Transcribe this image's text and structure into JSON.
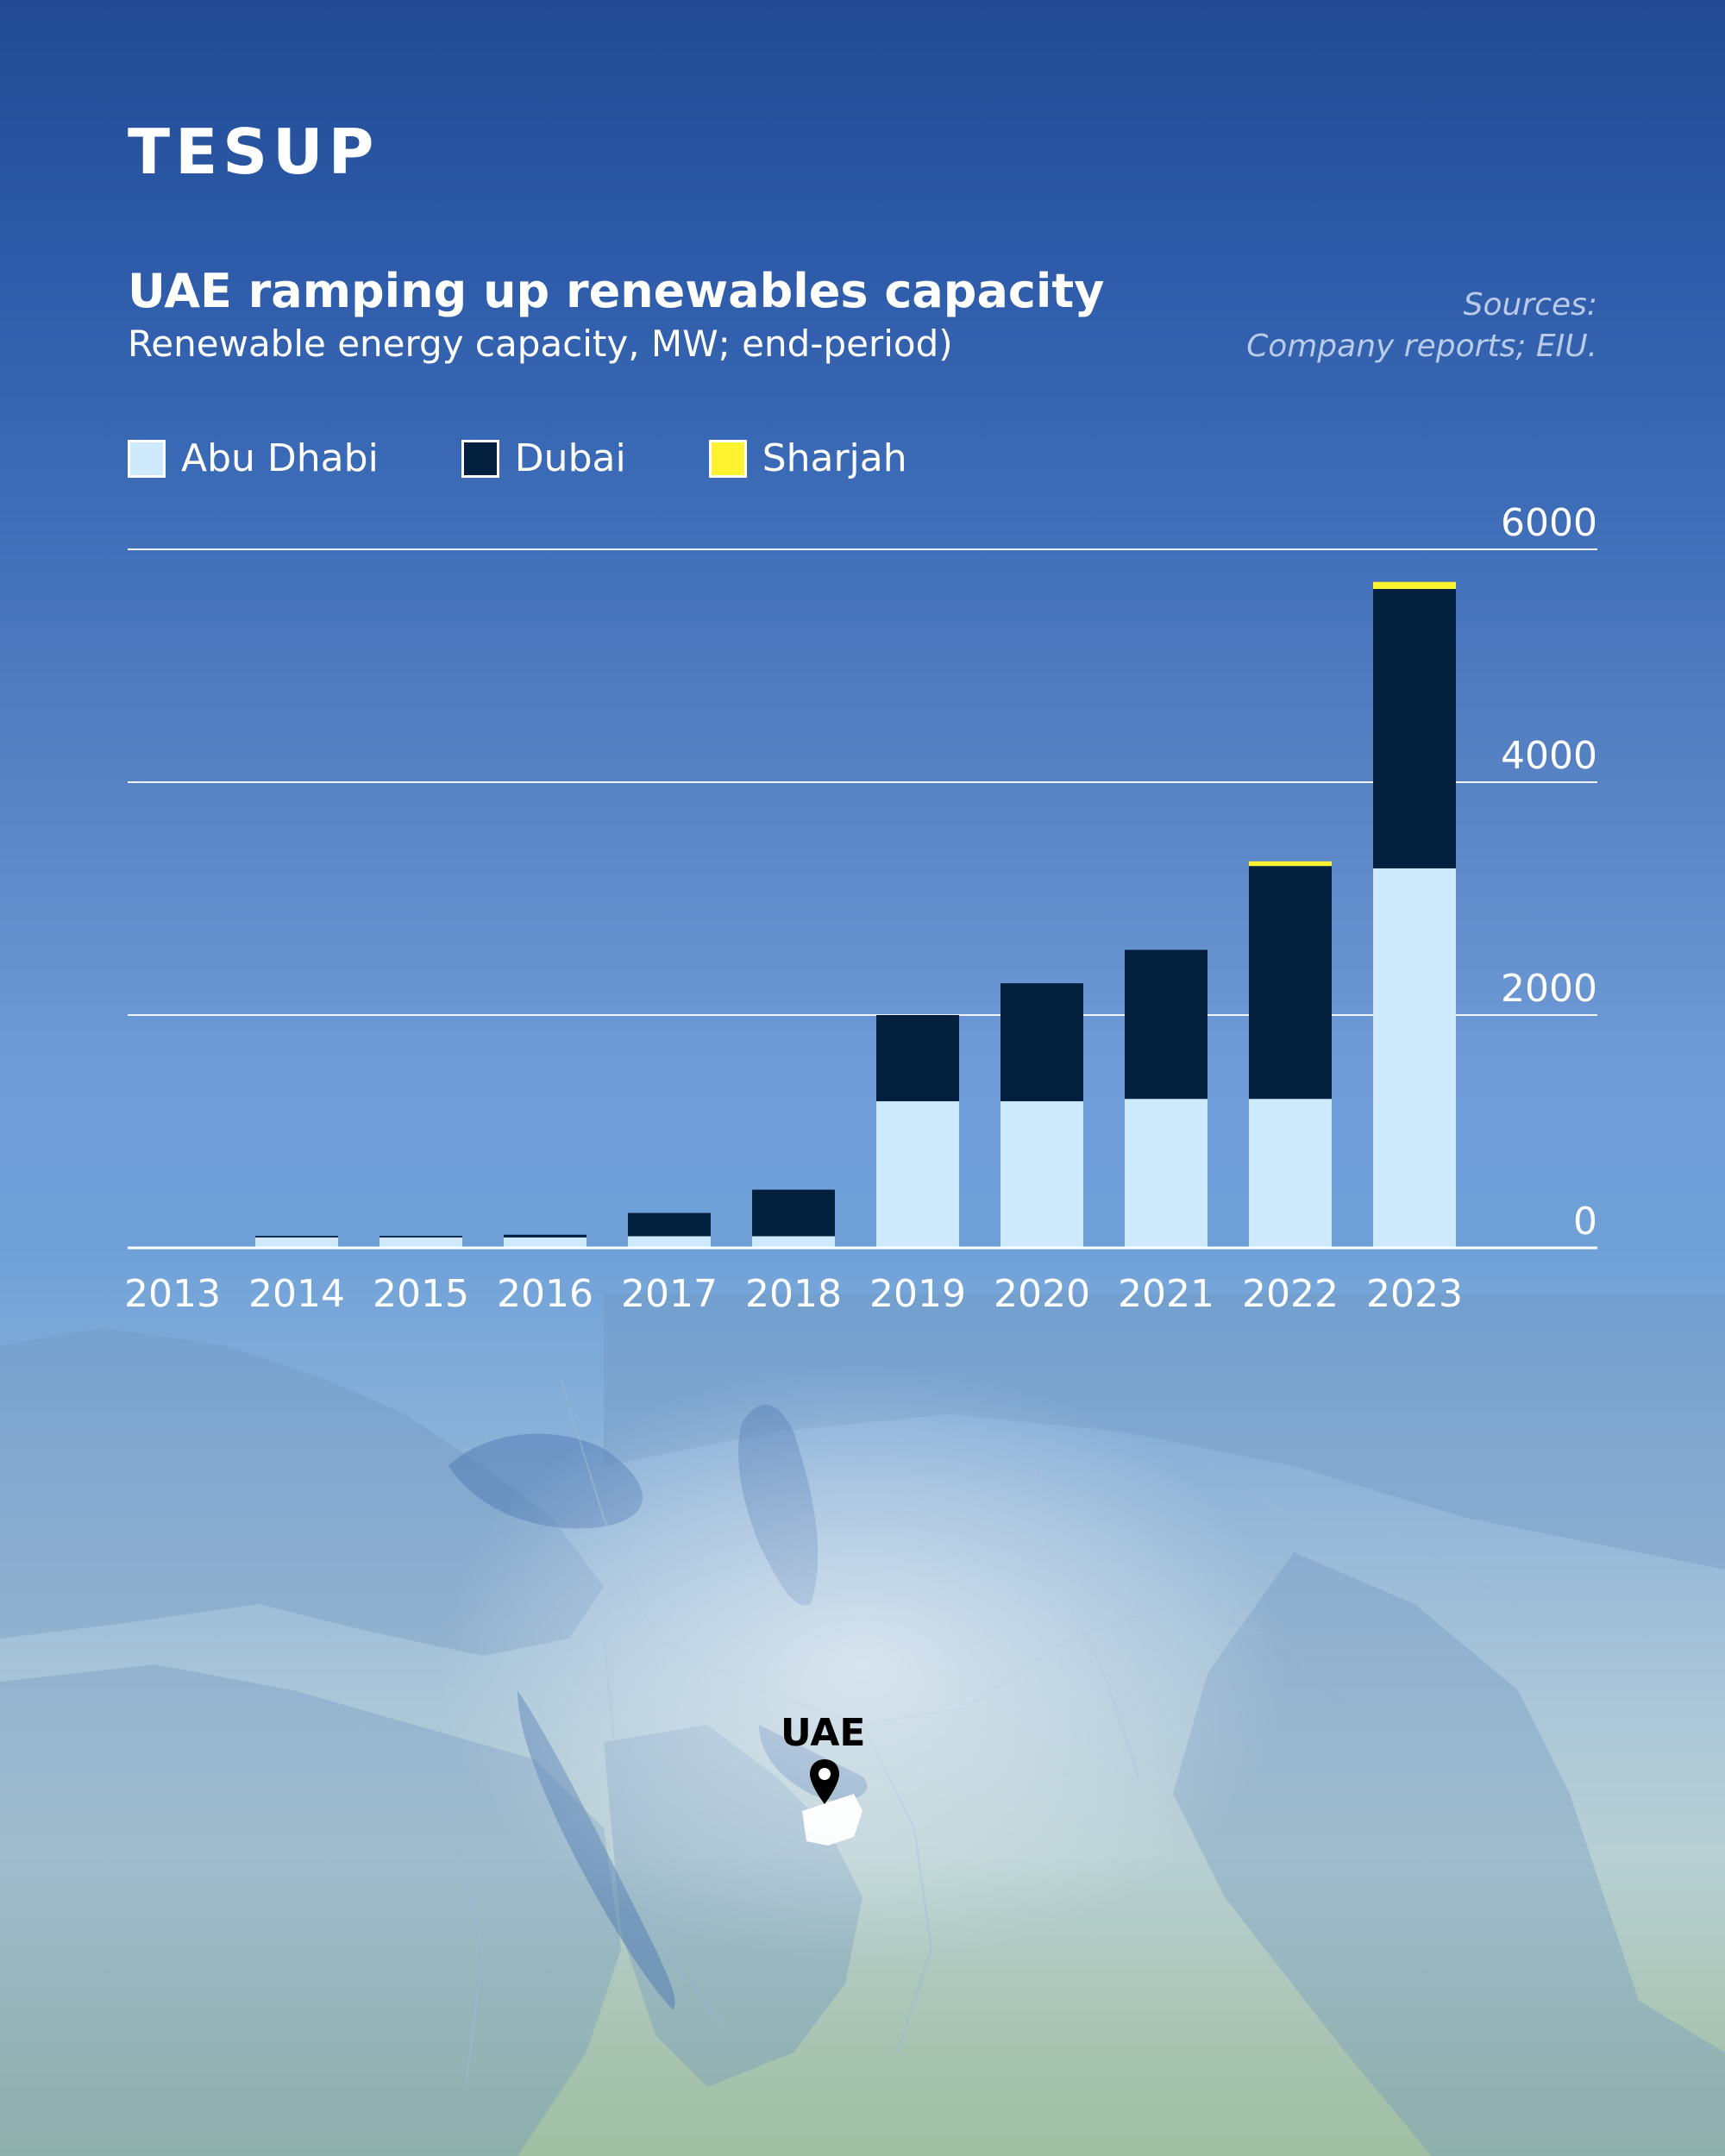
{
  "brand": {
    "logo_text": "TESUP"
  },
  "header": {
    "title": "UAE ramping up renewables capacity",
    "subtitle": "Renewable energy capacity, MW; end-period)",
    "sources_line1": "Sources:",
    "sources_line2": "Company reports; EIU."
  },
  "legend": [
    {
      "label": "Abu Dhabi",
      "color": "#cde9fb"
    },
    {
      "label": "Dubai",
      "color": "#021f3e"
    },
    {
      "label": "Sharjah",
      "color": "#fff22e"
    }
  ],
  "map": {
    "marker_label": "UAE"
  },
  "chart_data": {
    "type": "bar",
    "stacked": true,
    "title": "UAE ramping up renewables capacity",
    "subtitle": "Renewable energy capacity, MW; end-period)",
    "xlabel": "",
    "ylabel": "MW",
    "ylim": [
      0,
      6000
    ],
    "yticks": [
      0,
      2000,
      4000,
      6000
    ],
    "categories": [
      "2013",
      "2014",
      "2015",
      "2016",
      "2017",
      "2018",
      "2019",
      "2020",
      "2021",
      "2022",
      "2023"
    ],
    "series": [
      {
        "name": "Abu Dhabi",
        "color": "#cde9fb",
        "values": [
          0,
          90,
          90,
          90,
          100,
          100,
          1260,
          1260,
          1280,
          1280,
          3260
        ]
      },
      {
        "name": "Dubai",
        "color": "#021f3e",
        "values": [
          0,
          13,
          13,
          23,
          200,
          400,
          740,
          1013,
          1280,
          2000,
          2400
        ]
      },
      {
        "name": "Sharjah",
        "color": "#fff22e",
        "values": [
          0,
          0,
          0,
          0,
          0,
          0,
          0,
          0,
          0,
          40,
          60
        ]
      }
    ],
    "legend_position": "top-left",
    "grid": true
  }
}
